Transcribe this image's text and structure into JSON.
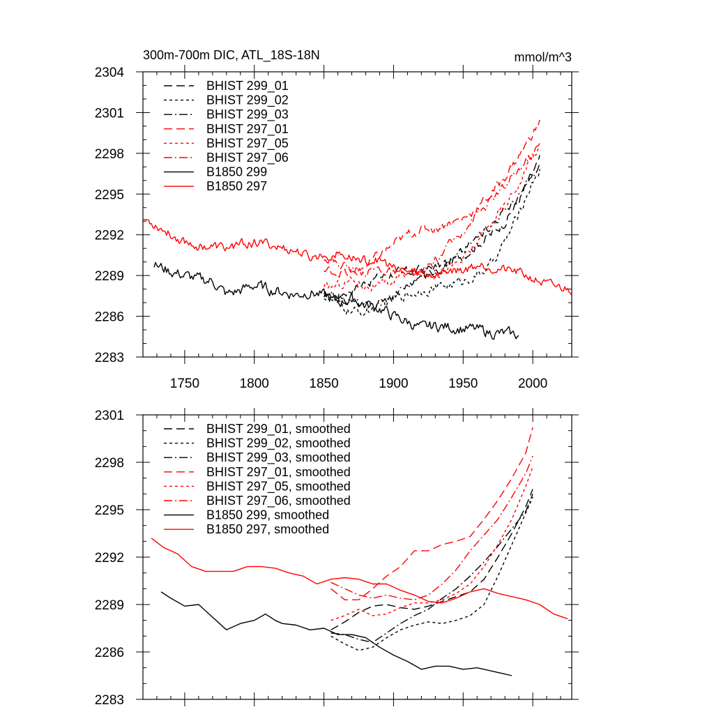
{
  "chart_data": [
    {
      "type": "line",
      "title": "300m-700m DIC, ATL_18S-18N",
      "units": "mmol/m^3",
      "xlim": [
        1720,
        2028
      ],
      "ylim": [
        2283,
        2304
      ],
      "xticks": [
        1750,
        1800,
        1850,
        1900,
        1950,
        2000
      ],
      "xtick_labels": [
        "1750",
        "1800",
        "1850",
        "1900",
        "1950",
        "2000"
      ],
      "yticks": [
        2283,
        2286,
        2289,
        2292,
        2295,
        2298,
        2301,
        2304
      ],
      "ytick_labels": [
        "2283",
        "2286",
        "2289",
        "2292",
        "2295",
        "2298",
        "2301",
        "2304"
      ],
      "legend_position": "top-left",
      "series": [
        {
          "name": "BHIST 299_01",
          "color": "#000000",
          "dash": "long-dash",
          "noise": 0.3,
          "x": [
            1850,
            1860,
            1870,
            1880,
            1890,
            1900,
            1910,
            1920,
            1930,
            1940,
            1950,
            1960,
            1970,
            1980,
            1990,
            2000,
            2005
          ],
          "y": [
            2287.4,
            2287.6,
            2288.0,
            2288.5,
            2288.9,
            2289.2,
            2289.3,
            2289.4,
            2289.6,
            2290.0,
            2290.5,
            2291.3,
            2292.0,
            2293.0,
            2294.5,
            2296.5,
            2297.5
          ]
        },
        {
          "name": "BHIST 299_02",
          "color": "#000000",
          "dash": "short-dash",
          "noise": 0.3,
          "x": [
            1850,
            1860,
            1870,
            1880,
            1890,
            1900,
            1910,
            1920,
            1930,
            1940,
            1950,
            1960,
            1970,
            1980,
            1990,
            2000,
            2005
          ],
          "y": [
            2287.5,
            2286.8,
            2286.3,
            2286.3,
            2286.8,
            2287.2,
            2287.6,
            2287.9,
            2288.1,
            2288.3,
            2288.6,
            2289.0,
            2289.8,
            2291.5,
            2293.5,
            2296.0,
            2296.8
          ]
        },
        {
          "name": "BHIST 299_03",
          "color": "#000000",
          "dash": "dash-dot",
          "noise": 0.3,
          "x": [
            1850,
            1860,
            1870,
            1880,
            1890,
            1900,
            1910,
            1920,
            1930,
            1940,
            1950,
            1960,
            1970,
            1980,
            1990,
            2000,
            2005
          ],
          "y": [
            2287.5,
            2287.3,
            2287.2,
            2286.7,
            2286.9,
            2287.6,
            2288.3,
            2288.9,
            2289.4,
            2290.0,
            2290.8,
            2291.8,
            2292.8,
            2293.8,
            2294.8,
            2296.3,
            2297.0
          ]
        },
        {
          "name": "BHIST 297_01",
          "color": "#ff0000",
          "dash": "long-dash",
          "noise": 0.3,
          "x": [
            1850,
            1860,
            1870,
            1880,
            1890,
            1900,
            1910,
            1920,
            1930,
            1940,
            1950,
            1960,
            1970,
            1980,
            1990,
            2000,
            2005
          ],
          "y": [
            2289.3,
            2289.3,
            2289.0,
            2289.7,
            2290.5,
            2291.3,
            2292.0,
            2292.4,
            2292.5,
            2292.9,
            2293.2,
            2294.0,
            2295.0,
            2296.3,
            2297.8,
            2299.5,
            2300.3
          ]
        },
        {
          "name": "BHIST 297_05",
          "color": "#ff0000",
          "dash": "short-dash",
          "noise": 0.3,
          "x": [
            1850,
            1860,
            1870,
            1880,
            1890,
            1900,
            1910,
            1920,
            1930,
            1940,
            1950,
            1960,
            1970,
            1980,
            1990,
            2000,
            2005
          ],
          "y": [
            2288.0,
            2288.3,
            2288.7,
            2288.3,
            2288.1,
            2288.6,
            2289.2,
            2289.3,
            2289.2,
            2289.6,
            2290.2,
            2291.4,
            2292.8,
            2294.2,
            2295.8,
            2297.8,
            2298.6
          ]
        },
        {
          "name": "BHIST 297_06",
          "color": "#ff0000",
          "dash": "dash-dot",
          "noise": 0.3,
          "x": [
            1850,
            1860,
            1870,
            1880,
            1890,
            1900,
            1910,
            1920,
            1930,
            1940,
            1950,
            1960,
            1970,
            1980,
            1990,
            2000,
            2005
          ],
          "y": [
            2290.4,
            2289.9,
            2289.5,
            2289.3,
            2289.5,
            2289.1,
            2289.0,
            2289.2,
            2290.0,
            2291.2,
            2292.4,
            2293.5,
            2294.5,
            2295.5,
            2296.8,
            2298.0,
            2298.6
          ]
        },
        {
          "name": "B1850 299",
          "color": "#000000",
          "dash": "solid",
          "noise": 0.35,
          "x": [
            1728,
            1740,
            1750,
            1760,
            1770,
            1780,
            1790,
            1800,
            1810,
            1820,
            1830,
            1840,
            1850,
            1860,
            1870,
            1880,
            1890,
            1900,
            1910,
            1920,
            1930,
            1940,
            1950,
            1960,
            1970,
            1980,
            1990
          ],
          "y": [
            2289.8,
            2289.3,
            2289.0,
            2288.7,
            2288.6,
            2287.6,
            2287.9,
            2288.3,
            2288.0,
            2287.8,
            2287.6,
            2287.8,
            2287.5,
            2287.0,
            2287.3,
            2286.8,
            2286.6,
            2286.0,
            2285.6,
            2285.1,
            2285.3,
            2285.2,
            2285.1,
            2285.0,
            2284.8,
            2284.7,
            2284.6
          ]
        },
        {
          "name": "B1850 297",
          "color": "#ff0000",
          "dash": "solid",
          "noise": 0.3,
          "x": [
            1720,
            1730,
            1740,
            1750,
            1760,
            1770,
            1780,
            1790,
            1800,
            1810,
            1820,
            1830,
            1840,
            1850,
            1860,
            1870,
            1880,
            1890,
            1900,
            1910,
            1920,
            1930,
            1940,
            1950,
            1960,
            1970,
            1980,
            1990,
            2000,
            2010,
            2020,
            2028
          ],
          "y": [
            2293.2,
            2292.7,
            2292.0,
            2291.5,
            2291.2,
            2291.1,
            2291.0,
            2291.3,
            2291.4,
            2291.3,
            2291.0,
            2290.8,
            2290.3,
            2290.5,
            2290.6,
            2290.3,
            2290.1,
            2290.2,
            2289.5,
            2289.3,
            2289.1,
            2289.1,
            2289.4,
            2289.4,
            2289.8,
            2289.7,
            2289.4,
            2289.2,
            2288.8,
            2288.3,
            2288.1,
            2288.0
          ]
        }
      ]
    },
    {
      "type": "line",
      "title": "",
      "units": "",
      "xlim": [
        1720,
        2028
      ],
      "ylim": [
        2283,
        2301
      ],
      "xticks": [
        1750,
        1800,
        1850,
        1900,
        1950,
        2000
      ],
      "xtick_labels": [],
      "yticks": [
        2283,
        2286,
        2289,
        2292,
        2295,
        2298,
        2301
      ],
      "ytick_labels": [
        "2283",
        "2286",
        "2289",
        "2292",
        "2295",
        "2298",
        "2301"
      ],
      "legend_position": "top-left",
      "series": [
        {
          "name": "BHIST 299_01, smoothed",
          "color": "#000000",
          "dash": "long-dash",
          "x": [
            1855,
            1865,
            1875,
            1885,
            1895,
            1905,
            1915,
            1925,
            1935,
            1945,
            1955,
            1965,
            1975,
            1985,
            1995,
            2000
          ],
          "y": [
            2287.4,
            2287.9,
            2288.5,
            2288.9,
            2289.0,
            2288.8,
            2288.7,
            2288.9,
            2289.2,
            2289.5,
            2289.8,
            2290.6,
            2292.0,
            2293.5,
            2295.2,
            2296.3
          ]
        },
        {
          "name": "BHIST 299_02, smoothed",
          "color": "#000000",
          "dash": "short-dash",
          "x": [
            1855,
            1865,
            1875,
            1885,
            1895,
            1905,
            1915,
            1925,
            1935,
            1945,
            1955,
            1965,
            1975,
            1985,
            1995,
            2000
          ],
          "y": [
            2287.0,
            2286.5,
            2286.1,
            2286.3,
            2286.9,
            2287.4,
            2287.7,
            2287.9,
            2287.8,
            2288.0,
            2288.3,
            2289.0,
            2290.8,
            2292.8,
            2294.8,
            2295.8
          ]
        },
        {
          "name": "BHIST 299_03, smoothed",
          "color": "#000000",
          "dash": "dash-dot",
          "x": [
            1855,
            1865,
            1875,
            1885,
            1895,
            1905,
            1915,
            1925,
            1935,
            1945,
            1955,
            1965,
            1975,
            1985,
            1995,
            2000
          ],
          "y": [
            2287.2,
            2287.1,
            2286.8,
            2286.6,
            2287.2,
            2287.8,
            2288.3,
            2288.7,
            2289.4,
            2290.0,
            2290.8,
            2291.7,
            2292.7,
            2293.8,
            2294.9,
            2296.0
          ]
        },
        {
          "name": "BHIST 297_01, smoothed",
          "color": "#ff0000",
          "dash": "long-dash",
          "x": [
            1855,
            1865,
            1875,
            1885,
            1895,
            1905,
            1915,
            1925,
            1935,
            1945,
            1955,
            1965,
            1975,
            1985,
            1995,
            2000
          ],
          "y": [
            2290.0,
            2289.3,
            2289.3,
            2290.0,
            2290.8,
            2291.4,
            2292.4,
            2292.4,
            2292.8,
            2293.0,
            2293.3,
            2294.4,
            2295.6,
            2297.0,
            2298.6,
            2300.2
          ]
        },
        {
          "name": "BHIST 297_05, smoothed",
          "color": "#ff0000",
          "dash": "short-dash",
          "x": [
            1855,
            1865,
            1875,
            1885,
            1895,
            1905,
            1915,
            1925,
            1935,
            1945,
            1955,
            1965,
            1975,
            1985,
            1995,
            2000
          ],
          "y": [
            2288.0,
            2288.3,
            2288.7,
            2288.3,
            2288.4,
            2288.8,
            2289.1,
            2289.1,
            2289.3,
            2289.7,
            2290.3,
            2291.4,
            2292.8,
            2294.4,
            2296.5,
            2297.7
          ]
        },
        {
          "name": "BHIST 297_06, smoothed",
          "color": "#ff0000",
          "dash": "dash-dot",
          "x": [
            1855,
            1865,
            1875,
            1885,
            1895,
            1905,
            1915,
            1925,
            1935,
            1945,
            1955,
            1965,
            1975,
            1985,
            1995,
            2000
          ],
          "y": [
            2290.4,
            2290.0,
            2289.6,
            2289.4,
            2289.6,
            2289.4,
            2289.3,
            2289.6,
            2290.3,
            2291.2,
            2292.4,
            2293.4,
            2294.4,
            2295.8,
            2297.3,
            2298.4
          ]
        },
        {
          "name": "B1850 299, smoothed",
          "color": "#000000",
          "dash": "solid",
          "x": [
            1733,
            1740,
            1750,
            1760,
            1770,
            1780,
            1790,
            1800,
            1808,
            1815,
            1820,
            1830,
            1840,
            1850,
            1860,
            1870,
            1880,
            1890,
            1900,
            1910,
            1920,
            1930,
            1940,
            1950,
            1960,
            1970,
            1980,
            1985
          ],
          "y": [
            2289.8,
            2289.4,
            2288.9,
            2289.0,
            2288.2,
            2287.4,
            2287.8,
            2288.0,
            2288.4,
            2288.0,
            2287.8,
            2287.7,
            2287.4,
            2287.5,
            2287.1,
            2287.1,
            2286.9,
            2286.3,
            2285.8,
            2285.4,
            2284.9,
            2285.1,
            2285.1,
            2284.9,
            2285.0,
            2284.8,
            2284.6,
            2284.5
          ]
        },
        {
          "name": "B1850 297, smoothed",
          "color": "#ff0000",
          "dash": "solid",
          "x": [
            1726,
            1735,
            1745,
            1755,
            1765,
            1775,
            1785,
            1795,
            1805,
            1815,
            1825,
            1835,
            1845,
            1855,
            1865,
            1875,
            1885,
            1895,
            1905,
            1915,
            1925,
            1935,
            1945,
            1955,
            1965,
            1975,
            1985,
            1995,
            2005,
            2015,
            2025
          ],
          "y": [
            2293.2,
            2292.6,
            2292.2,
            2291.4,
            2291.1,
            2291.1,
            2291.1,
            2291.4,
            2291.4,
            2291.3,
            2291.0,
            2290.8,
            2290.3,
            2290.6,
            2290.7,
            2290.6,
            2290.3,
            2290.3,
            2289.9,
            2289.6,
            2289.2,
            2289.1,
            2289.4,
            2289.8,
            2290.0,
            2289.7,
            2289.5,
            2289.3,
            2289.0,
            2288.4,
            2288.1
          ]
        }
      ]
    }
  ]
}
